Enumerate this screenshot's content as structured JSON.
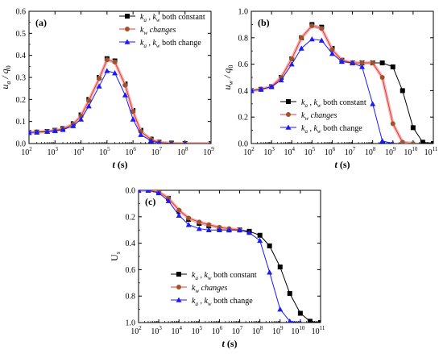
{
  "chart_data": [
    {
      "type": "line",
      "panel_label": "(a)",
      "xscale": "log",
      "xlim": [
        100,
        1000000000
      ],
      "xticks": [
        "10",
        "10",
        "10",
        "10",
        "10",
        "10",
        "10",
        "10"
      ],
      "xtick_exponents": [
        "2",
        "3",
        "4",
        "5",
        "6",
        "7",
        "8",
        "9"
      ],
      "ylim": [
        0,
        0.6
      ],
      "yticks": [
        "0.0",
        "0.1",
        "0.2",
        "0.3",
        "0.4",
        "0.5",
        "0.6"
      ],
      "xlabel": {
        "main": "t",
        "unit": " (s)"
      },
      "ylabel": {
        "main": "u",
        "sub": "a",
        "mid": " / q",
        "sub2": "0"
      },
      "legend_position": "top-right",
      "series": [
        {
          "legend": {
            "parts": [
              "k",
              "a",
              " , k",
              "w",
              " both constant"
            ]
          },
          "color": "#000000",
          "marker": "square",
          "line_color": "#000000",
          "x": [
            100,
            200,
            500,
            1000,
            2000,
            5000,
            10000,
            20000,
            50000,
            100000,
            200000,
            500000,
            1000000,
            2000000,
            5000000,
            10000000,
            30000000,
            100000000,
            1000000000
          ],
          "y": [
            0.05,
            0.052,
            0.055,
            0.06,
            0.068,
            0.09,
            0.13,
            0.2,
            0.3,
            0.385,
            0.375,
            0.27,
            0.15,
            0.06,
            0.02,
            0.006,
            0.002,
            0.0,
            0.0
          ]
        },
        {
          "legend": {
            "parts": [
              "k",
              "w",
              " changes"
            ]
          },
          "color": "#a0522d",
          "marker": "circle",
          "line_color": "#e53935",
          "x": [
            100,
            200,
            500,
            1000,
            2000,
            5000,
            10000,
            20000,
            50000,
            100000,
            200000,
            500000,
            1000000,
            2000000,
            5000000,
            10000000,
            30000000,
            100000000,
            1000000000
          ],
          "y": [
            0.05,
            0.052,
            0.055,
            0.06,
            0.066,
            0.088,
            0.125,
            0.195,
            0.295,
            0.38,
            0.37,
            0.265,
            0.145,
            0.055,
            0.018,
            0.005,
            0.001,
            0.0,
            0.0
          ]
        },
        {
          "legend": {
            "parts": [
              "k",
              "a",
              " , k",
              "w",
              " both change"
            ]
          },
          "color": "#1a1aff",
          "marker": "triangle",
          "line_color": "#1a1aff",
          "x": [
            100,
            200,
            500,
            1000,
            2000,
            5000,
            10000,
            20000,
            50000,
            100000,
            200000,
            500000,
            1000000,
            2000000,
            5000000,
            10000000,
            30000000,
            100000000,
            1000000000
          ],
          "y": [
            0.05,
            0.052,
            0.054,
            0.058,
            0.063,
            0.08,
            0.11,
            0.17,
            0.26,
            0.33,
            0.32,
            0.22,
            0.11,
            0.04,
            0.012,
            0.003,
            0.001,
            0.0,
            0.0
          ]
        }
      ]
    },
    {
      "type": "line",
      "panel_label": "(b)",
      "xscale": "log",
      "xlim": [
        100,
        100000000000
      ],
      "xticks": [
        "10",
        "10",
        "10",
        "10",
        "10",
        "10",
        "10",
        "10",
        "10",
        "10"
      ],
      "xtick_exponents": [
        "2",
        "3",
        "4",
        "5",
        "6",
        "7",
        "8",
        "9",
        "10",
        "11"
      ],
      "ylim": [
        0,
        1.0
      ],
      "yticks": [
        "0.0",
        "0.2",
        "0.4",
        "0.6",
        "0.8",
        "1.0"
      ],
      "xlabel": {
        "main": "t",
        "unit": " (s)"
      },
      "ylabel": {
        "main": "u",
        "sub": "w",
        "mid": " / q",
        "sub2": "0"
      },
      "legend_position": "bottom-right",
      "series": [
        {
          "legend": {
            "parts": [
              "k",
              "a",
              " , k",
              "w",
              " both constant"
            ]
          },
          "color": "#000000",
          "marker": "square",
          "line_color": "#000000",
          "x": [
            100,
            300,
            1000,
            3000,
            10000,
            30000,
            100000,
            300000,
            1000000,
            3000000,
            10000000,
            30000000,
            100000000,
            300000000,
            1000000000,
            3000000000,
            10000000000,
            30000000000,
            100000000000
          ],
          "y": [
            0.4,
            0.41,
            0.43,
            0.5,
            0.64,
            0.8,
            0.9,
            0.88,
            0.72,
            0.63,
            0.61,
            0.61,
            0.61,
            0.61,
            0.58,
            0.4,
            0.12,
            0.01,
            0.0
          ]
        },
        {
          "legend": {
            "parts": [
              "k",
              "w",
              " changes"
            ]
          },
          "color": "#a0522d",
          "marker": "circle",
          "line_color": "#e53935",
          "x": [
            100,
            300,
            1000,
            3000,
            10000,
            30000,
            100000,
            300000,
            1000000,
            3000000,
            10000000,
            30000000,
            100000000,
            300000000,
            1000000000,
            3000000000,
            10000000000
          ],
          "y": [
            0.4,
            0.41,
            0.43,
            0.5,
            0.64,
            0.8,
            0.89,
            0.87,
            0.71,
            0.63,
            0.61,
            0.61,
            0.61,
            0.5,
            0.15,
            0.01,
            0.0
          ]
        },
        {
          "legend": {
            "parts": [
              "k",
              "a",
              " , k",
              "w",
              " both change"
            ]
          },
          "color": "#1a1aff",
          "marker": "triangle",
          "line_color": "#1a1aff",
          "x": [
            100,
            300,
            1000,
            3000,
            10000,
            30000,
            100000,
            300000,
            1000000,
            3000000,
            10000000,
            30000000,
            100000000,
            300000000,
            1000000000
          ],
          "y": [
            0.4,
            0.41,
            0.43,
            0.48,
            0.6,
            0.72,
            0.79,
            0.78,
            0.68,
            0.62,
            0.61,
            0.58,
            0.3,
            0.02,
            0.0
          ]
        }
      ]
    },
    {
      "type": "line",
      "panel_label": "(c)",
      "xscale": "log",
      "xlim": [
        100,
        100000000000
      ],
      "xticks": [
        "10",
        "10",
        "10",
        "10",
        "10",
        "10",
        "10",
        "10",
        "10",
        "10"
      ],
      "xtick_exponents": [
        "2",
        "3",
        "4",
        "5",
        "6",
        "7",
        "8",
        "9",
        "10",
        "11"
      ],
      "ylim": [
        1.0,
        0.0
      ],
      "yticks": [
        "0.0",
        "0.2",
        "0.4",
        "0.6",
        "0.8",
        "1.0"
      ],
      "xlabel": {
        "main": "t",
        "unit": " (s)"
      },
      "ylabel": {
        "main": "U",
        "sub": "s",
        "mid": "",
        "sub2": ""
      },
      "legend_position": "bottom-right",
      "series": [
        {
          "legend": {
            "parts": [
              "k",
              "a",
              " , k",
              "w",
              " both constant"
            ]
          },
          "color": "#000000",
          "marker": "square",
          "line_color": "#000000",
          "x": [
            100,
            300,
            1000,
            3000,
            10000,
            30000,
            100000,
            300000,
            1000000,
            3000000,
            10000000,
            30000000,
            100000000,
            300000000,
            1000000000,
            3000000000,
            10000000000,
            30000000000,
            100000000000
          ],
          "y": [
            0.0,
            0.0,
            0.01,
            0.06,
            0.16,
            0.22,
            0.25,
            0.27,
            0.29,
            0.3,
            0.3,
            0.31,
            0.34,
            0.42,
            0.58,
            0.78,
            0.93,
            0.99,
            1.0
          ]
        },
        {
          "legend": {
            "parts": [
              "k",
              "w",
              " changes"
            ]
          },
          "color": "#a0522d",
          "marker": "circle",
          "line_color": "#e53935",
          "x": [
            100,
            300,
            1000,
            3000,
            10000,
            30000,
            100000,
            300000,
            1000000,
            3000000,
            10000000
          ],
          "y": [
            0.0,
            0.0,
            0.01,
            0.06,
            0.15,
            0.21,
            0.24,
            0.26,
            0.28,
            0.29,
            0.3
          ]
        },
        {
          "legend": {
            "parts": [
              "k",
              "a",
              " , k",
              "w",
              " both change"
            ]
          },
          "color": "#1a1aff",
          "marker": "triangle",
          "line_color": "#1a1aff",
          "x": [
            100,
            300,
            1000,
            3000,
            10000,
            30000,
            100000,
            300000,
            1000000,
            3000000,
            10000000,
            30000000,
            100000000,
            300000000,
            1000000000,
            3000000000,
            10000000000
          ],
          "y": [
            0.0,
            0.0,
            0.02,
            0.08,
            0.19,
            0.26,
            0.29,
            0.3,
            0.3,
            0.3,
            0.3,
            0.32,
            0.38,
            0.62,
            0.9,
            0.99,
            1.0
          ]
        }
      ]
    }
  ]
}
